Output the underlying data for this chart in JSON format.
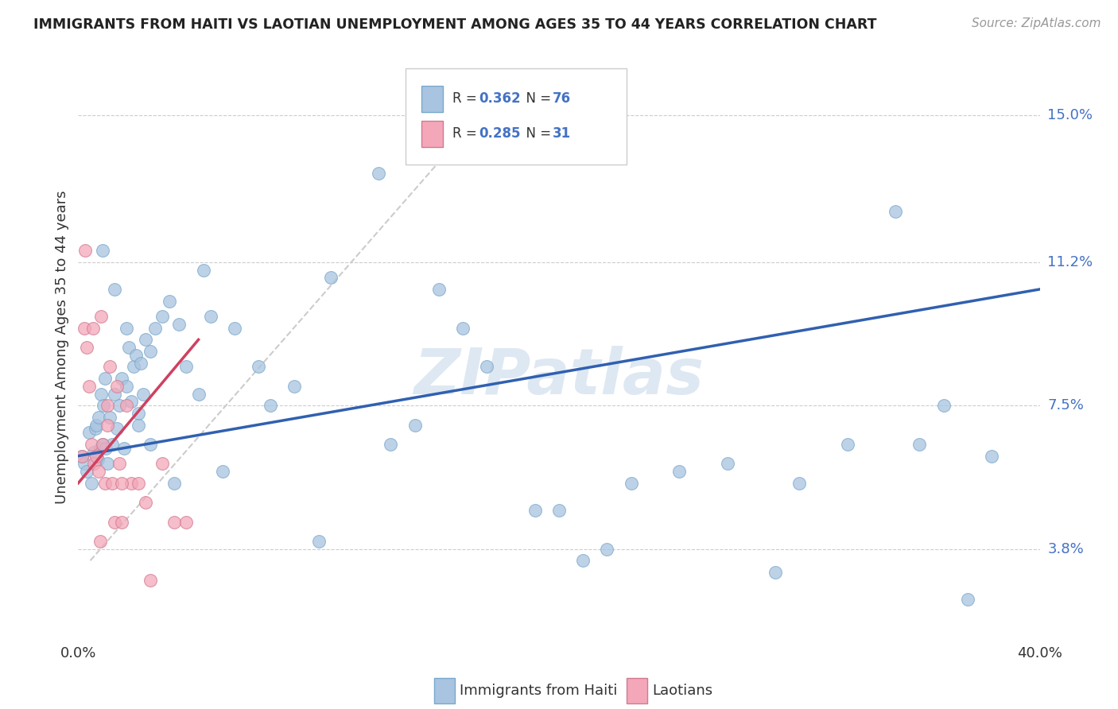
{
  "title": "IMMIGRANTS FROM HAITI VS LAOTIAN UNEMPLOYMENT AMONG AGES 35 TO 44 YEARS CORRELATION CHART",
  "source": "Source: ZipAtlas.com",
  "ylabel": "Unemployment Among Ages 35 to 44 years",
  "ytick_vals": [
    3.8,
    7.5,
    11.2,
    15.0
  ],
  "ytick_labels": [
    "3.8%",
    "7.5%",
    "11.2%",
    "15.0%"
  ],
  "xlim": [
    0.0,
    40.0
  ],
  "ylim": [
    1.5,
    16.5
  ],
  "haiti_color": "#a8c4e0",
  "haiti_edge_color": "#7aa8cc",
  "laotian_color": "#f4a7b9",
  "laotian_edge_color": "#d07a90",
  "haiti_trend_color": "#3060b0",
  "laotian_trend_color": "#d04060",
  "diag_color": "#cccccc",
  "haiti_R": "0.362",
  "haiti_N": "76",
  "laotian_R": "0.285",
  "laotian_N": "31",
  "legend_label_haiti": "Immigrants from Haiti",
  "legend_label_laotian": "Laotians",
  "watermark": "ZIPatlas",
  "watermark_color": "#c8daea",
  "haiti_scatter_x": [
    0.15,
    0.25,
    0.35,
    0.45,
    0.55,
    0.65,
    0.7,
    0.75,
    0.8,
    0.85,
    0.9,
    0.95,
    1.0,
    1.05,
    1.1,
    1.15,
    1.2,
    1.3,
    1.4,
    1.5,
    1.6,
    1.7,
    1.8,
    1.9,
    2.0,
    2.1,
    2.2,
    2.3,
    2.4,
    2.5,
    2.6,
    2.7,
    2.8,
    3.0,
    3.2,
    3.5,
    3.8,
    4.2,
    4.5,
    5.2,
    5.5,
    6.5,
    7.5,
    9.0,
    10.5,
    12.5,
    15.0,
    17.0,
    20.0,
    22.0,
    25.0,
    30.0,
    35.0,
    38.0,
    1.0,
    1.5,
    2.0,
    2.5,
    3.0,
    4.0,
    5.0,
    6.0,
    8.0,
    10.0,
    13.0,
    14.0,
    16.0,
    19.0,
    21.0,
    23.0,
    27.0,
    29.0,
    32.0,
    34.0,
    36.0,
    37.0
  ],
  "haiti_scatter_y": [
    6.2,
    6.0,
    5.8,
    6.8,
    5.5,
    6.3,
    6.9,
    7.0,
    6.1,
    7.2,
    6.4,
    7.8,
    6.5,
    7.5,
    8.2,
    6.4,
    6.0,
    7.2,
    6.5,
    7.8,
    6.9,
    7.5,
    8.2,
    6.4,
    8.0,
    9.0,
    7.6,
    8.5,
    8.8,
    7.3,
    8.6,
    7.8,
    9.2,
    8.9,
    9.5,
    9.8,
    10.2,
    9.6,
    8.5,
    11.0,
    9.8,
    9.5,
    8.5,
    8.0,
    10.8,
    13.5,
    10.5,
    8.5,
    4.8,
    3.8,
    5.8,
    5.5,
    6.5,
    6.2,
    11.5,
    10.5,
    9.5,
    7.0,
    6.5,
    5.5,
    7.8,
    5.8,
    7.5,
    4.0,
    6.5,
    7.0,
    9.5,
    4.8,
    3.5,
    5.5,
    6.0,
    3.2,
    6.5,
    12.5,
    7.5,
    2.5
  ],
  "laotian_scatter_x": [
    0.15,
    0.25,
    0.35,
    0.45,
    0.55,
    0.65,
    0.75,
    0.85,
    0.95,
    1.0,
    1.1,
    1.2,
    1.3,
    1.4,
    1.5,
    1.6,
    1.7,
    1.8,
    2.0,
    2.2,
    2.5,
    2.8,
    3.0,
    3.5,
    4.0,
    4.5,
    0.3,
    0.6,
    0.9,
    1.2,
    1.8
  ],
  "laotian_scatter_y": [
    6.2,
    9.5,
    9.0,
    8.0,
    6.5,
    6.0,
    6.2,
    5.8,
    9.8,
    6.5,
    5.5,
    7.5,
    8.5,
    5.5,
    4.5,
    8.0,
    6.0,
    4.5,
    7.5,
    5.5,
    5.5,
    5.0,
    3.0,
    6.0,
    4.5,
    4.5,
    11.5,
    9.5,
    4.0,
    7.0,
    5.5
  ],
  "haiti_line_x": [
    0.0,
    40.0
  ],
  "haiti_line_y": [
    6.2,
    10.5
  ],
  "laotian_line_x": [
    0.0,
    5.0
  ],
  "laotian_line_y": [
    5.5,
    9.2
  ],
  "diag_line_x": [
    0.5,
    17.0
  ],
  "diag_line_y": [
    3.5,
    15.2
  ]
}
